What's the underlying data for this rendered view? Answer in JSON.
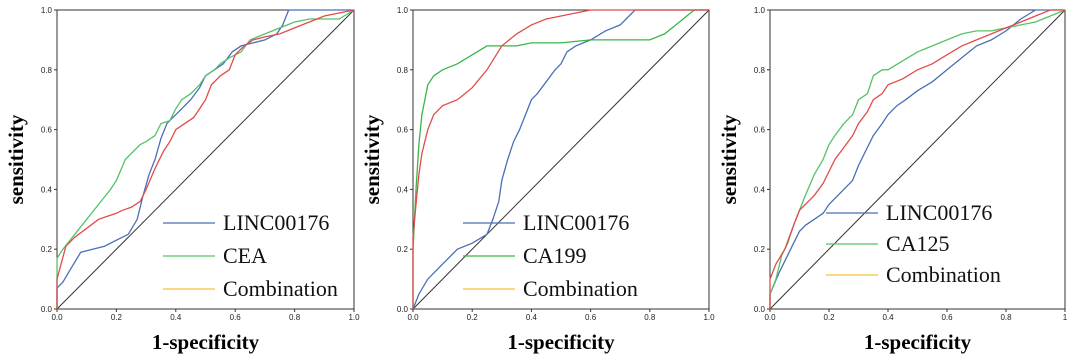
{
  "chart_data": [
    {
      "type": "line",
      "xlabel": "1-specificity",
      "ylabel": "sensitivity",
      "xlim": [
        0,
        1
      ],
      "ylim": [
        0,
        1
      ],
      "xticks": [
        "0.0",
        "0.2",
        "0.4",
        "0.6",
        "0.8",
        "1.0"
      ],
      "yticks": [
        "0.0",
        "0.2",
        "0.4",
        "0.6",
        "0.8",
        "1.0"
      ],
      "legend_position": "bottom-right",
      "reference_line": true,
      "series": [
        {
          "name": "LINC00176",
          "color": "#4a6fb5",
          "x": [
            0,
            0,
            0.02,
            0.05,
            0.08,
            0.12,
            0.16,
            0.2,
            0.24,
            0.27,
            0.29,
            0.31,
            0.33,
            0.35,
            0.37,
            0.39,
            0.41,
            0.43,
            0.45,
            0.48,
            0.5,
            0.53,
            0.56,
            0.59,
            0.62,
            0.66,
            0.7,
            0.74,
            0.76,
            0.78,
            0.85,
            0.9,
            0.95,
            1.0
          ],
          "y": [
            0,
            0.07,
            0.09,
            0.14,
            0.19,
            0.2,
            0.21,
            0.23,
            0.25,
            0.3,
            0.38,
            0.45,
            0.5,
            0.57,
            0.62,
            0.64,
            0.66,
            0.68,
            0.7,
            0.74,
            0.78,
            0.8,
            0.82,
            0.86,
            0.88,
            0.89,
            0.9,
            0.92,
            0.95,
            1.0,
            1.0,
            1.0,
            1.0,
            1.0
          ]
        },
        {
          "name": "CEA",
          "color": "#55c267",
          "x": [
            0,
            0,
            0.02,
            0.06,
            0.1,
            0.14,
            0.18,
            0.2,
            0.23,
            0.25,
            0.28,
            0.3,
            0.33,
            0.35,
            0.38,
            0.4,
            0.42,
            0.45,
            0.48,
            0.5,
            0.53,
            0.55,
            0.58,
            0.62,
            0.65,
            0.7,
            0.75,
            0.8,
            0.85,
            0.9,
            0.95,
            1.0
          ],
          "y": [
            0,
            0.17,
            0.2,
            0.25,
            0.3,
            0.35,
            0.4,
            0.43,
            0.5,
            0.52,
            0.55,
            0.56,
            0.58,
            0.62,
            0.63,
            0.67,
            0.7,
            0.72,
            0.75,
            0.78,
            0.8,
            0.82,
            0.84,
            0.86,
            0.9,
            0.92,
            0.94,
            0.96,
            0.97,
            0.97,
            0.97,
            1.0
          ]
        },
        {
          "name": "Combination",
          "color": "#f6c234",
          "x": [],
          "y": []
        },
        {
          "name": "",
          "color": "#e34b4b",
          "x": [
            0,
            0,
            0.03,
            0.06,
            0.1,
            0.14,
            0.17,
            0.2,
            0.22,
            0.25,
            0.28,
            0.3,
            0.33,
            0.36,
            0.38,
            0.4,
            0.43,
            0.46,
            0.48,
            0.5,
            0.52,
            0.55,
            0.58,
            0.6,
            0.63,
            0.66,
            0.7,
            0.75,
            0.8,
            0.85,
            0.9,
            1.0
          ],
          "y": [
            0,
            0.1,
            0.21,
            0.24,
            0.27,
            0.3,
            0.31,
            0.32,
            0.33,
            0.34,
            0.36,
            0.4,
            0.47,
            0.53,
            0.56,
            0.6,
            0.62,
            0.64,
            0.67,
            0.7,
            0.75,
            0.78,
            0.8,
            0.85,
            0.88,
            0.9,
            0.91,
            0.92,
            0.94,
            0.96,
            0.98,
            1.0
          ]
        }
      ]
    },
    {
      "type": "line",
      "xlabel": "1-specificity",
      "ylabel": "sensitivity",
      "xlim": [
        0,
        1
      ],
      "ylim": [
        0,
        1
      ],
      "xticks": [
        "0.0",
        "0.2",
        "0.4",
        "0.6",
        "0.8",
        "1.0"
      ],
      "yticks": [
        "0.0",
        "0.2",
        "0.4",
        "0.6",
        "0.8",
        "1.0"
      ],
      "legend_position": "bottom-right",
      "reference_line": true,
      "series": [
        {
          "name": "LINC00176",
          "color": "#4a6fb5",
          "x": [
            0,
            0.02,
            0.05,
            0.1,
            0.15,
            0.2,
            0.25,
            0.27,
            0.29,
            0.3,
            0.32,
            0.34,
            0.36,
            0.38,
            0.4,
            0.42,
            0.45,
            0.48,
            0.5,
            0.52,
            0.55,
            0.6,
            0.65,
            0.7,
            0.75,
            0.8,
            0.9,
            1.0
          ],
          "y": [
            0,
            0.05,
            0.1,
            0.15,
            0.2,
            0.22,
            0.25,
            0.3,
            0.36,
            0.43,
            0.5,
            0.56,
            0.6,
            0.65,
            0.7,
            0.72,
            0.76,
            0.8,
            0.82,
            0.86,
            0.88,
            0.9,
            0.93,
            0.95,
            1.0,
            1.0,
            1.0,
            1.0
          ]
        },
        {
          "name": "CA199",
          "color": "#3bb44a",
          "x": [
            0,
            0,
            0.01,
            0.02,
            0.03,
            0.05,
            0.07,
            0.1,
            0.15,
            0.2,
            0.25,
            0.3,
            0.35,
            0.4,
            0.5,
            0.6,
            0.7,
            0.8,
            0.85,
            0.9,
            0.95,
            1.0
          ],
          "y": [
            0,
            0.2,
            0.4,
            0.55,
            0.65,
            0.75,
            0.78,
            0.8,
            0.82,
            0.85,
            0.88,
            0.88,
            0.88,
            0.89,
            0.89,
            0.9,
            0.9,
            0.9,
            0.92,
            0.96,
            1.0,
            1.0
          ]
        },
        {
          "name": "Combination",
          "color": "#f6c234",
          "x": [],
          "y": []
        },
        {
          "name": "",
          "color": "#e34b4b",
          "x": [
            0,
            0,
            0.01,
            0.02,
            0.03,
            0.05,
            0.07,
            0.1,
            0.15,
            0.2,
            0.25,
            0.3,
            0.35,
            0.4,
            0.45,
            0.5,
            0.6,
            0.7,
            0.8,
            0.9,
            1.0
          ],
          "y": [
            0,
            0.24,
            0.35,
            0.45,
            0.52,
            0.6,
            0.65,
            0.68,
            0.7,
            0.74,
            0.8,
            0.88,
            0.92,
            0.95,
            0.97,
            0.98,
            1.0,
            1.0,
            1.0,
            1.0,
            1.0
          ]
        }
      ]
    },
    {
      "type": "line",
      "xlabel": "1-specificity",
      "ylabel": "sensitivity",
      "xlim": [
        0,
        1
      ],
      "ylim": [
        0,
        1
      ],
      "xticks": [
        "0.0",
        "0.2",
        "0.4",
        "0.6",
        "0.8",
        "1"
      ],
      "yticks": [
        "0.0",
        "0.2",
        "0.4",
        "0.6",
        "0.8",
        "1.0"
      ],
      "legend_position": "bottom-right",
      "reference_line": true,
      "series": [
        {
          "name": "LINC00176",
          "color": "#4a6fb5",
          "x": [
            0,
            0,
            0.03,
            0.06,
            0.08,
            0.1,
            0.12,
            0.15,
            0.18,
            0.2,
            0.23,
            0.25,
            0.28,
            0.3,
            0.32,
            0.35,
            0.38,
            0.4,
            0.43,
            0.46,
            0.5,
            0.55,
            0.6,
            0.65,
            0.7,
            0.75,
            0.8,
            0.85,
            0.9,
            0.95,
            1.0
          ],
          "y": [
            0,
            0.05,
            0.12,
            0.18,
            0.22,
            0.26,
            0.28,
            0.3,
            0.32,
            0.35,
            0.38,
            0.4,
            0.43,
            0.48,
            0.52,
            0.58,
            0.62,
            0.65,
            0.68,
            0.7,
            0.73,
            0.76,
            0.8,
            0.84,
            0.88,
            0.9,
            0.93,
            0.97,
            1.0,
            1.0,
            1.0
          ]
        },
        {
          "name": "CA125",
          "color": "#55c267",
          "x": [
            0,
            0,
            0.02,
            0.04,
            0.06,
            0.08,
            0.1,
            0.12,
            0.15,
            0.18,
            0.2,
            0.22,
            0.25,
            0.28,
            0.3,
            0.33,
            0.35,
            0.38,
            0.4,
            0.45,
            0.5,
            0.55,
            0.6,
            0.65,
            0.7,
            0.75,
            0.8,
            0.85,
            0.9,
            0.95,
            1.0
          ],
          "y": [
            0,
            0.05,
            0.1,
            0.18,
            0.22,
            0.28,
            0.33,
            0.38,
            0.45,
            0.5,
            0.55,
            0.58,
            0.62,
            0.65,
            0.7,
            0.72,
            0.78,
            0.8,
            0.8,
            0.83,
            0.86,
            0.88,
            0.9,
            0.92,
            0.93,
            0.93,
            0.94,
            0.95,
            0.96,
            0.98,
            1.0
          ]
        },
        {
          "name": "Combination",
          "color": "#f6c234",
          "x": [],
          "y": []
        },
        {
          "name": "",
          "color": "#e34b4b",
          "x": [
            0,
            0,
            0.02,
            0.05,
            0.08,
            0.1,
            0.12,
            0.15,
            0.18,
            0.2,
            0.22,
            0.25,
            0.28,
            0.3,
            0.33,
            0.35,
            0.38,
            0.4,
            0.45,
            0.5,
            0.55,
            0.6,
            0.65,
            0.7,
            0.75,
            0.8,
            0.85,
            0.9,
            0.95,
            1.0
          ],
          "y": [
            0,
            0.1,
            0.15,
            0.2,
            0.28,
            0.33,
            0.35,
            0.38,
            0.42,
            0.46,
            0.5,
            0.54,
            0.58,
            0.62,
            0.66,
            0.7,
            0.72,
            0.75,
            0.77,
            0.8,
            0.82,
            0.85,
            0.88,
            0.9,
            0.92,
            0.94,
            0.96,
            0.98,
            1.0,
            1.0
          ]
        }
      ]
    }
  ]
}
